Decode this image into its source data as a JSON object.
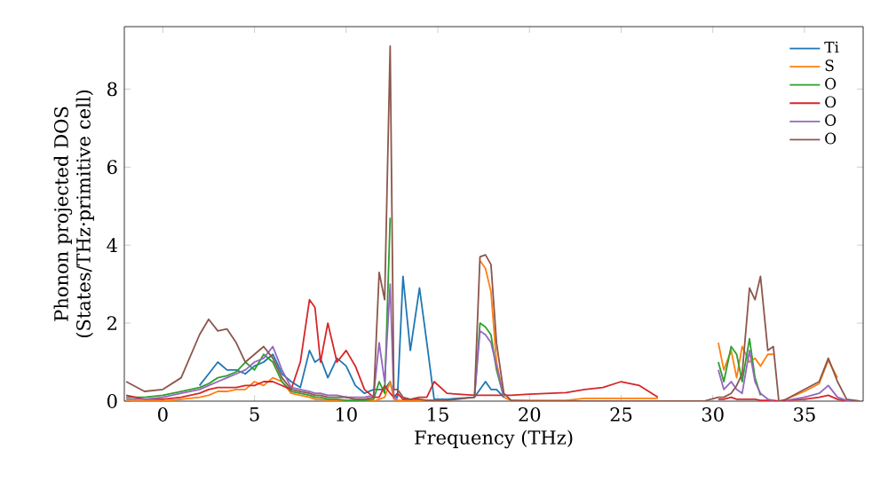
{
  "chart_data": {
    "type": "line",
    "xlabel": "Frequency (THz)",
    "ylabel": "Phonon projected DOS (States/THz·primitive cell)",
    "xlim": [
      -2.1,
      38.2
    ],
    "ylim": [
      0,
      9.6
    ],
    "xticks": [
      0,
      5,
      10,
      15,
      20,
      25,
      30,
      35
    ],
    "yticks": [
      0,
      2,
      4,
      6,
      8
    ],
    "legend": "top right",
    "grid": false,
    "line_style": "solid",
    "x": [
      -2,
      -1,
      0,
      1,
      2,
      2.5,
      3,
      3.5,
      4,
      4.5,
      5,
      5.5,
      6,
      6.5,
      7,
      7.5,
      8,
      8.3,
      8.6,
      9,
      9.5,
      10,
      10.5,
      11,
      11.5,
      11.8,
      12.1,
      12.4,
      12.6,
      12.8,
      13.1,
      13.5,
      14,
      14.4,
      14.8,
      15.5,
      17,
      17.3,
      17.6,
      17.9,
      18.2,
      18.6,
      19,
      20,
      22,
      23,
      24,
      25,
      26,
      27,
      27.5,
      29.5,
      30.3,
      30.6,
      31,
      31.3,
      31.6,
      32,
      32.3,
      32.6,
      33,
      33.3,
      33.6,
      34,
      35,
      35.8,
      36.3,
      36.8,
      37.3,
      38
    ],
    "series": [
      {
        "name": "Ti",
        "color": "#1f77b4",
        "values": [
          null,
          null,
          null,
          null,
          0.4,
          0.7,
          1.0,
          0.8,
          0.8,
          0.7,
          0.9,
          1.0,
          1.2,
          0.7,
          0.5,
          0.35,
          1.3,
          1.0,
          1.1,
          0.6,
          1.1,
          0.9,
          0.4,
          0.2,
          0.3,
          0.3,
          0.3,
          0.5,
          0.15,
          0.1,
          3.2,
          1.3,
          2.9,
          1.5,
          0.05,
          0.05,
          0.1,
          0.3,
          0.5,
          0.3,
          0.3,
          0.1,
          null,
          null,
          null,
          null,
          null,
          null,
          null,
          null,
          null,
          null,
          null,
          null,
          null,
          null,
          null,
          null,
          null,
          null,
          null,
          null,
          null,
          null,
          null,
          null,
          null,
          null,
          null,
          null
        ]
      },
      {
        "name": "S",
        "color": "#ff7f0e",
        "values": [
          0,
          0,
          0,
          0.05,
          0.1,
          0.15,
          0.25,
          0.25,
          0.3,
          0.3,
          0.5,
          0.4,
          0.6,
          0.5,
          0.2,
          0.15,
          0.1,
          0.05,
          0.05,
          0.02,
          0.02,
          0.02,
          0,
          0,
          0,
          0.05,
          0.1,
          0.5,
          0.05,
          0.02,
          0.02,
          0.02,
          0.02,
          0.02,
          0.02,
          0.02,
          null,
          3.6,
          3.4,
          2.8,
          1.0,
          0.1,
          0.02,
          0.02,
          0.02,
          0.07,
          0.07,
          0.07,
          0.07,
          0.07,
          null,
          null,
          1.5,
          0.8,
          1.3,
          0.6,
          1.4,
          1.0,
          1.1,
          0.9,
          1.2,
          1.2,
          null,
          0.05,
          0.25,
          0.45,
          1.05,
          0.6,
          null,
          null
        ]
      },
      {
        "name": "O",
        "color": "#2ca02c",
        "values": [
          0.1,
          0.1,
          0.15,
          0.25,
          0.35,
          0.45,
          0.6,
          0.65,
          0.75,
          1.0,
          0.8,
          1.2,
          1.0,
          0.5,
          0.25,
          0.2,
          0.15,
          0.1,
          0.1,
          0.05,
          0.05,
          0.02,
          0.02,
          0.02,
          0.05,
          0.5,
          0.2,
          4.7,
          null,
          null,
          null,
          null,
          null,
          null,
          null,
          null,
          0.1,
          2.0,
          1.9,
          1.7,
          0.8,
          0.1,
          null,
          null,
          null,
          null,
          null,
          null,
          null,
          null,
          null,
          null,
          1.0,
          0.5,
          1.4,
          1.2,
          0.5,
          1.6,
          0.6,
          0.15,
          null,
          null,
          null,
          null,
          null,
          null,
          null,
          null,
          null,
          null
        ]
      },
      {
        "name": "O",
        "color": "#d62728",
        "values": [
          0.15,
          0.05,
          0.05,
          0.1,
          0.2,
          0.3,
          0.35,
          0.35,
          0.35,
          0.4,
          0.4,
          0.5,
          0.5,
          0.4,
          0.3,
          1.0,
          2.6,
          2.4,
          1.0,
          2.0,
          1.0,
          1.3,
          0.9,
          0.3,
          0.1,
          0.1,
          0.4,
          0.2,
          0.1,
          0.2,
          0.05,
          0.05,
          0.1,
          0.1,
          0.5,
          0.2,
          0.15,
          0.15,
          0.15,
          0.15,
          0.15,
          0.15,
          0.15,
          0.18,
          0.22,
          0.3,
          0.35,
          0.5,
          0.4,
          0.1,
          null,
          null,
          0.05,
          0.05,
          0.1,
          0.05,
          0.05,
          0.05,
          0.05,
          0.02,
          0.02,
          0.02,
          0,
          0.02,
          0.05,
          0.1,
          0.15,
          0.05,
          0,
          0
        ]
      },
      {
        "name": "O",
        "color": "#9467bd",
        "values": [
          0.05,
          0.05,
          0.1,
          0.2,
          0.3,
          0.4,
          0.5,
          0.6,
          0.7,
          0.8,
          1.0,
          1.1,
          1.4,
          0.8,
          0.35,
          0.3,
          0.25,
          0.2,
          0.2,
          0.15,
          0.15,
          0.1,
          0.1,
          0.1,
          0.15,
          1.5,
          0.5,
          3.0,
          0.1,
          0.05,
          null,
          null,
          null,
          null,
          null,
          null,
          0.1,
          1.8,
          1.7,
          1.5,
          0.9,
          0.1,
          null,
          null,
          null,
          null,
          null,
          null,
          null,
          null,
          null,
          null,
          0.8,
          0.3,
          0.5,
          0.3,
          0.2,
          1.3,
          0.5,
          0.2,
          0.05,
          0.02,
          null,
          0.02,
          0.1,
          0.2,
          0.4,
          0.1,
          0.02,
          0
        ]
      },
      {
        "name": "O",
        "color": "#8c564b",
        "values": [
          0.5,
          0.25,
          0.3,
          0.6,
          1.7,
          2.1,
          1.8,
          1.85,
          1.5,
          1.0,
          1.2,
          1.4,
          1.1,
          0.6,
          0.3,
          0.25,
          0.2,
          0.15,
          0.15,
          0.1,
          0.1,
          0.1,
          0.05,
          0.05,
          0.1,
          3.3,
          2.6,
          9.1,
          0.3,
          0.3,
          0.1,
          0.05,
          0.05,
          0.02,
          0.02,
          0.02,
          0.1,
          3.7,
          3.75,
          3.5,
          1.5,
          0.2,
          0.02,
          0,
          0,
          0,
          0,
          0,
          0,
          0,
          0,
          0,
          0.1,
          0.1,
          0.2,
          0.4,
          0.7,
          2.9,
          2.6,
          3.2,
          1.3,
          1.4,
          0,
          0.05,
          0.3,
          0.5,
          1.1,
          0.5,
          0.05,
          0
        ]
      }
    ]
  }
}
